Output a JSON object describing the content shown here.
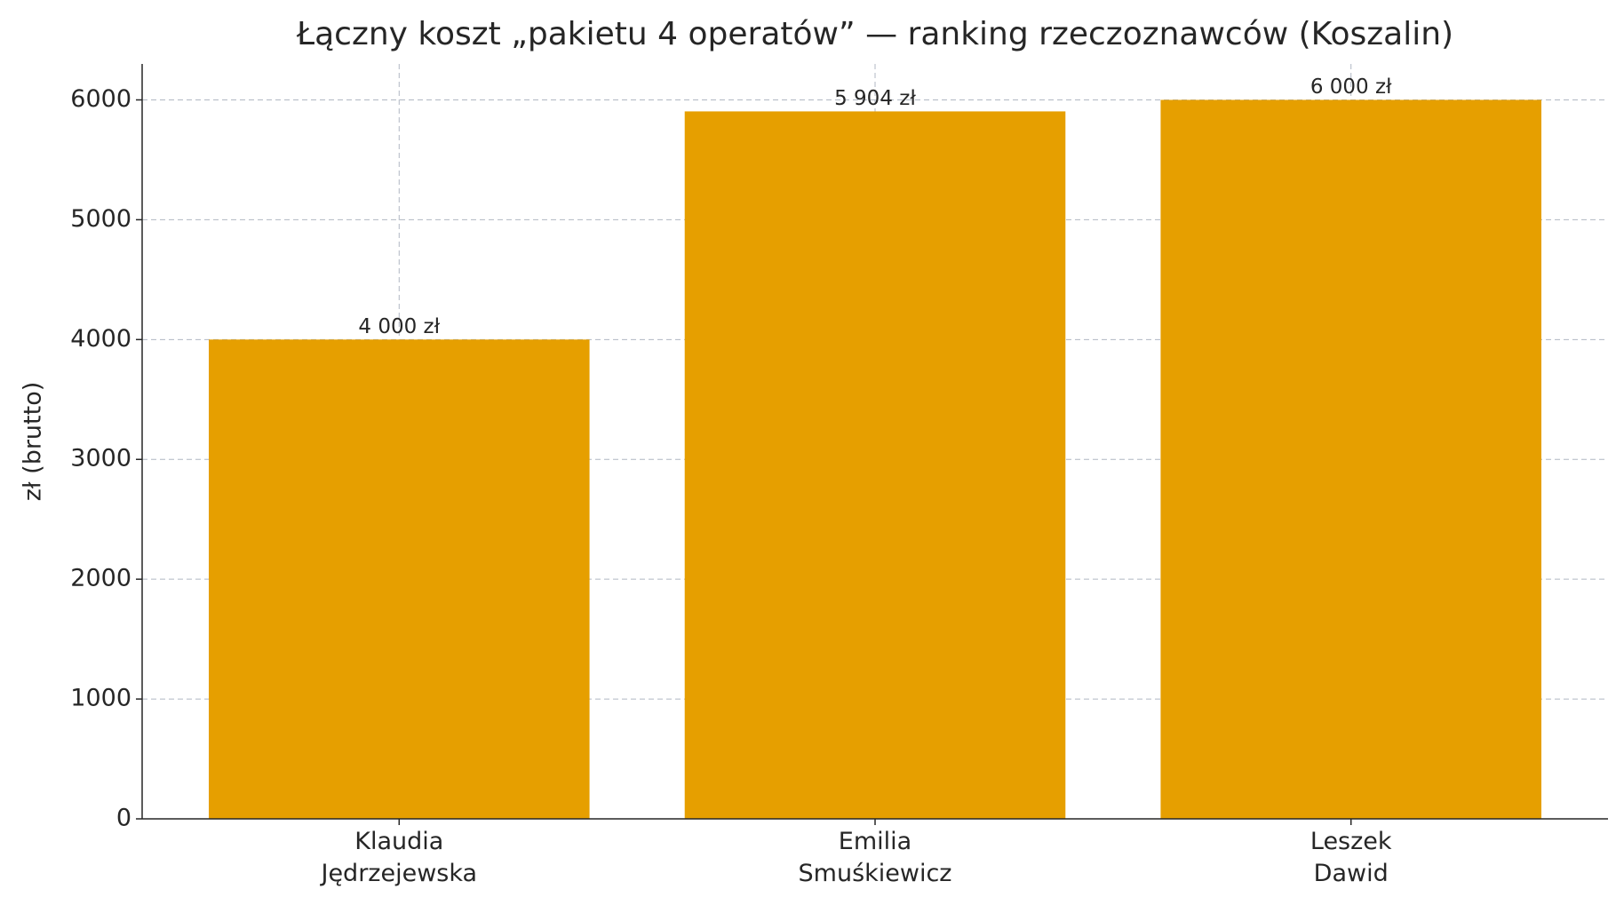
{
  "chart_data": {
    "type": "bar",
    "title": "Łączny koszt „pakietu 4 operatów” — ranking rzeczoznawców (Koszalin)",
    "y_label": "zł (brutto)",
    "categories": [
      "Klaudia\nJędrzejewska",
      "Emilia\nSmuśkiewicz",
      "Leszek\nDawid"
    ],
    "values": [
      4000,
      5904,
      6000
    ],
    "value_labels": [
      "4 000 zł",
      "5 904 zł",
      "6 000 zł"
    ],
    "color": "#e69f00",
    "ylim": [
      0,
      6300
    ],
    "yticks": [
      0,
      1000,
      2000,
      3000,
      4000,
      5000,
      6000
    ],
    "grid": true
  }
}
